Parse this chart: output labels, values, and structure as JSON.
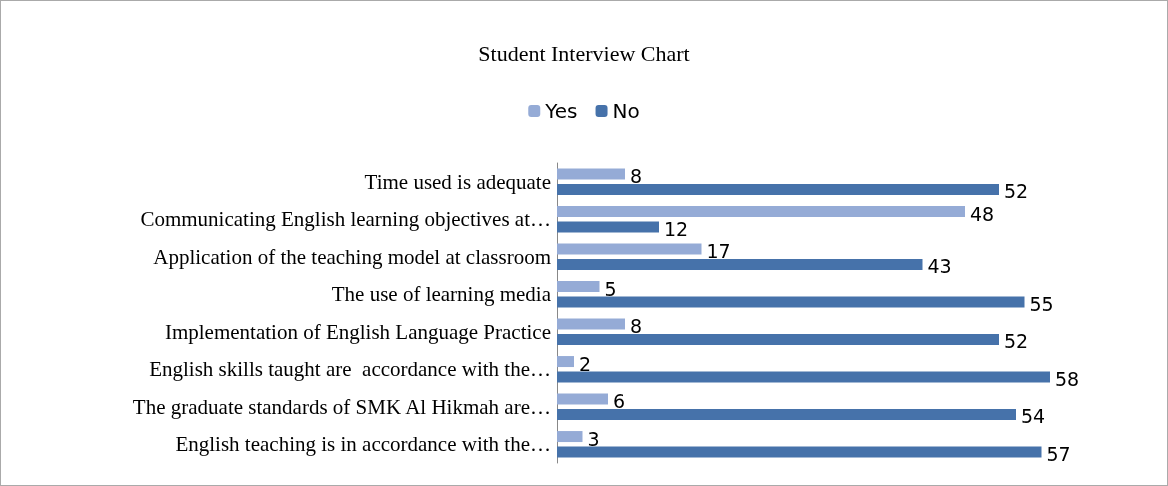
{
  "chart_data": {
    "type": "bar",
    "orientation": "horizontal",
    "title": "Student Interview Chart",
    "categories": [
      "Time used is adequate",
      "Communicating English learning objectives at…",
      "Application of the teaching model at classroom",
      "The use of learning media",
      "Implementation of English Language Practice",
      "English skills taught are  accordance with the…",
      "The graduate standards of SMK Al Hikmah are…",
      "English teaching is in accordance with the…"
    ],
    "series": [
      {
        "name": "Yes",
        "color": "#95abd6",
        "values": [
          8,
          48,
          17,
          5,
          8,
          2,
          6,
          3
        ]
      },
      {
        "name": "No",
        "color": "#4672aa",
        "values": [
          52,
          12,
          43,
          55,
          52,
          58,
          54,
          57
        ]
      }
    ],
    "data_labels": true,
    "legend": "top"
  }
}
